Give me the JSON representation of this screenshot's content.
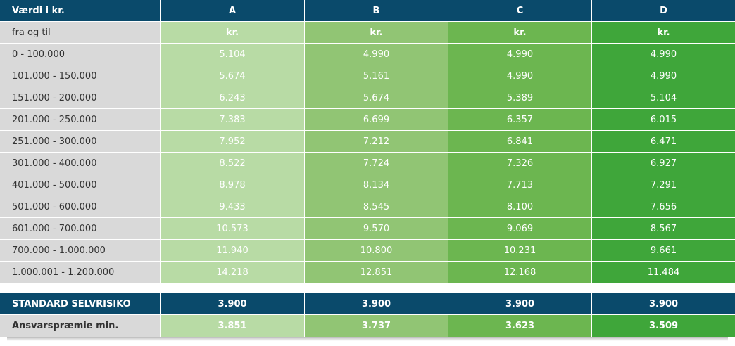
{
  "header": {
    "label": "Værdi i kr.",
    "columns": [
      "A",
      "B",
      "C",
      "D"
    ]
  },
  "subheader": {
    "label": "fra og til",
    "units": [
      "kr.",
      "kr.",
      "kr.",
      "kr."
    ]
  },
  "rows": [
    {
      "range": "0 - 100.000",
      "values": [
        "5.104",
        "4.990",
        "4.990",
        "4.990"
      ]
    },
    {
      "range": "101.000 - 150.000",
      "values": [
        "5.674",
        "5.161",
        "4.990",
        "4.990"
      ]
    },
    {
      "range": "151.000 - 200.000",
      "values": [
        "6.243",
        "5.674",
        "5.389",
        "5.104"
      ]
    },
    {
      "range": "201.000 - 250.000",
      "values": [
        "7.383",
        "6.699",
        "6.357",
        "6.015"
      ]
    },
    {
      "range": "251.000 - 300.000",
      "values": [
        "7.952",
        "7.212",
        "6.841",
        "6.471"
      ]
    },
    {
      "range": "301.000 - 400.000",
      "values": [
        "8.522",
        "7.724",
        "7.326",
        "6.927"
      ]
    },
    {
      "range": "401.000 - 500.000",
      "values": [
        "8.978",
        "8.134",
        "7.713",
        "7.291"
      ]
    },
    {
      "range": "501.000 - 600.000",
      "values": [
        "9.433",
        "8.545",
        "8.100",
        "7.656"
      ]
    },
    {
      "range": "601.000 - 700.000",
      "values": [
        "10.573",
        "9.570",
        "9.069",
        "8.567"
      ]
    },
    {
      "range": "700.000 - 1.000.000",
      "values": [
        "11.940",
        "10.800",
        "10.231",
        "9.661"
      ]
    },
    {
      "range": "1.000.001 - 1.200.000",
      "values": [
        "14.218",
        "12.851",
        "12.168",
        "11.484"
      ]
    }
  ],
  "selvrisiko": {
    "label": "STANDARD SELVRISIKO",
    "values": [
      "3.900",
      "3.900",
      "3.900",
      "3.900"
    ]
  },
  "ansvar": {
    "label": "Ansvarspræmie min.",
    "values": [
      "3.851",
      "3.737",
      "3.623",
      "3.509"
    ]
  },
  "colors": {
    "navy": "#0a4a6b",
    "grey": "#d9d9d9",
    "col_a": "#b8dba5",
    "col_b": "#91c574",
    "col_c": "#6cb650",
    "col_d": "#3fa63a"
  }
}
